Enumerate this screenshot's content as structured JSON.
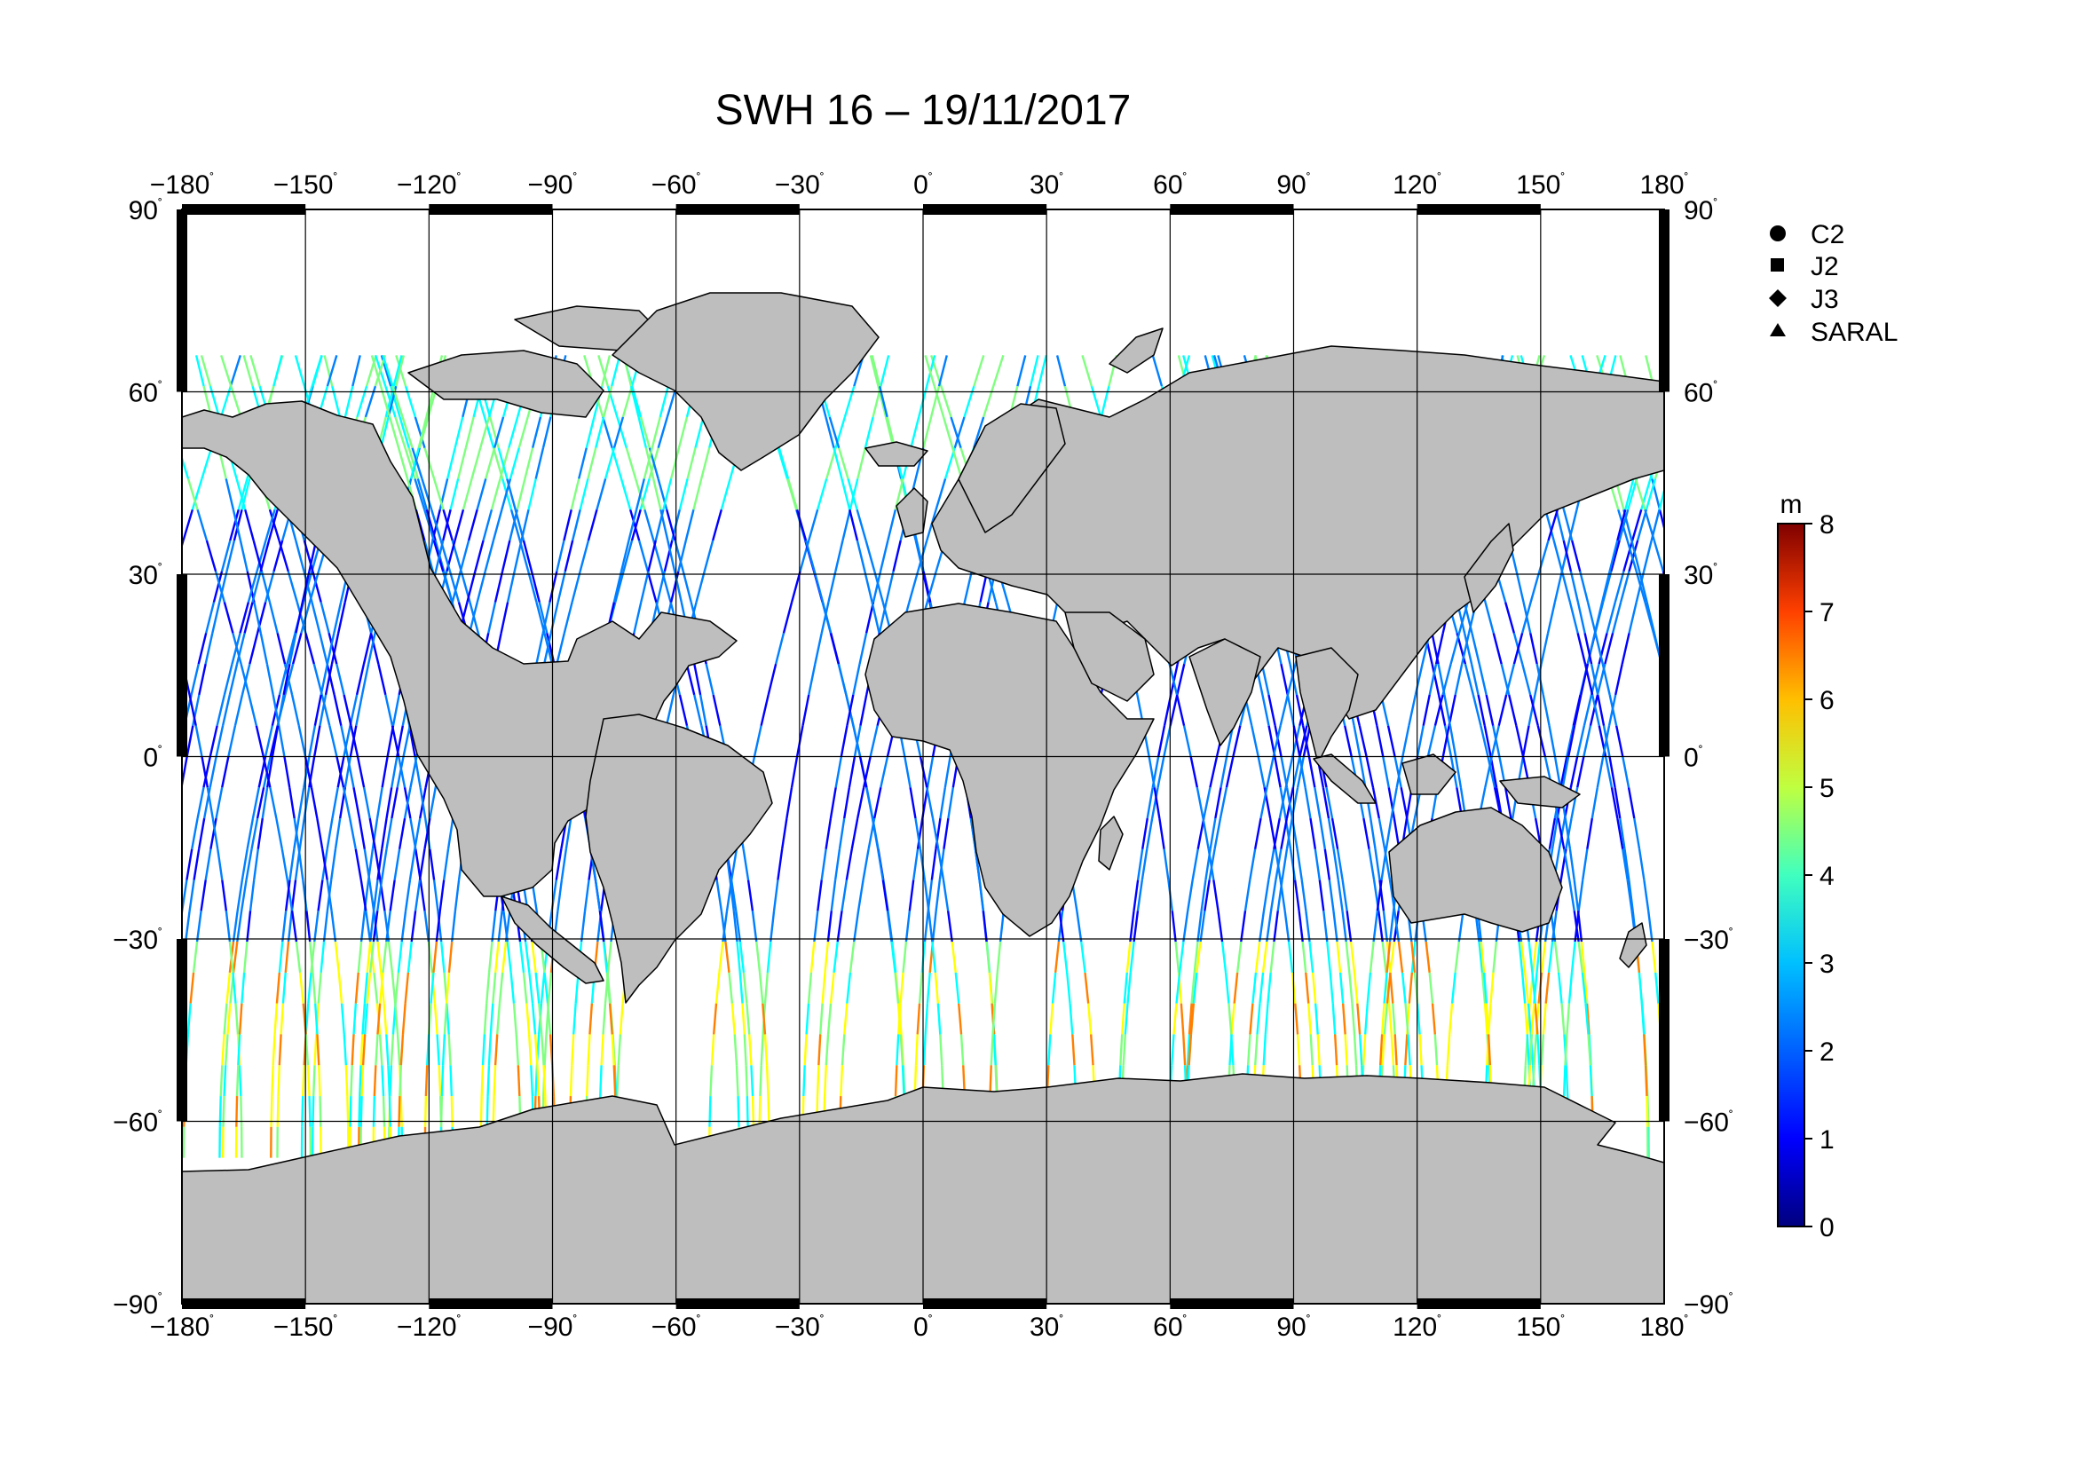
{
  "title": "SWH 16 – 19/11/2017",
  "map": {
    "projection": "equirectangular",
    "lon_range": [
      -180,
      180
    ],
    "lat_range": [
      -90,
      90
    ],
    "land_color": "#bebebe",
    "ocean_color": "#ffffff",
    "grid": true
  },
  "x_ticks": [
    "−180",
    "−150",
    "−120",
    "−90",
    "−60",
    "−30",
    "0",
    "30",
    "60",
    "90",
    "120",
    "150",
    "180"
  ],
  "y_ticks_left": [
    "90",
    "60",
    "30",
    "0",
    "−30",
    "−60",
    "−90"
  ],
  "y_ticks_right": [
    "90",
    "60",
    "30",
    "0",
    "−30",
    "−60",
    "−90"
  ],
  "degree_symbol": "˚",
  "legend": [
    {
      "label": "C2",
      "marker": "circle"
    },
    {
      "label": "J2",
      "marker": "square"
    },
    {
      "label": "J3",
      "marker": "diamond"
    },
    {
      "label": "SARAL",
      "marker": "triangle"
    }
  ],
  "colorbar": {
    "unit": "m",
    "min": 0,
    "max": 8,
    "ticks": [
      "0",
      "1",
      "2",
      "3",
      "4",
      "5",
      "6",
      "7",
      "8"
    ],
    "colors": [
      "#00007f",
      "#0000ff",
      "#007fff",
      "#00ffff",
      "#7fff7f",
      "#ffff00",
      "#ff7f00",
      "#ff0000",
      "#7f0000"
    ]
  },
  "chart_data": {
    "type": "scatter",
    "title": "SWH 16 – 19/11/2017",
    "xlabel": "",
    "ylabel": "",
    "xlim": [
      -180,
      180
    ],
    "ylim": [
      -90,
      90
    ],
    "color_scale": {
      "unit": "m",
      "range": [
        0,
        8
      ]
    },
    "series": [
      {
        "name": "C2"
      },
      {
        "name": "J2"
      },
      {
        "name": "J3"
      },
      {
        "name": "SARAL"
      }
    ],
    "grid": true,
    "legend": "top-right"
  }
}
